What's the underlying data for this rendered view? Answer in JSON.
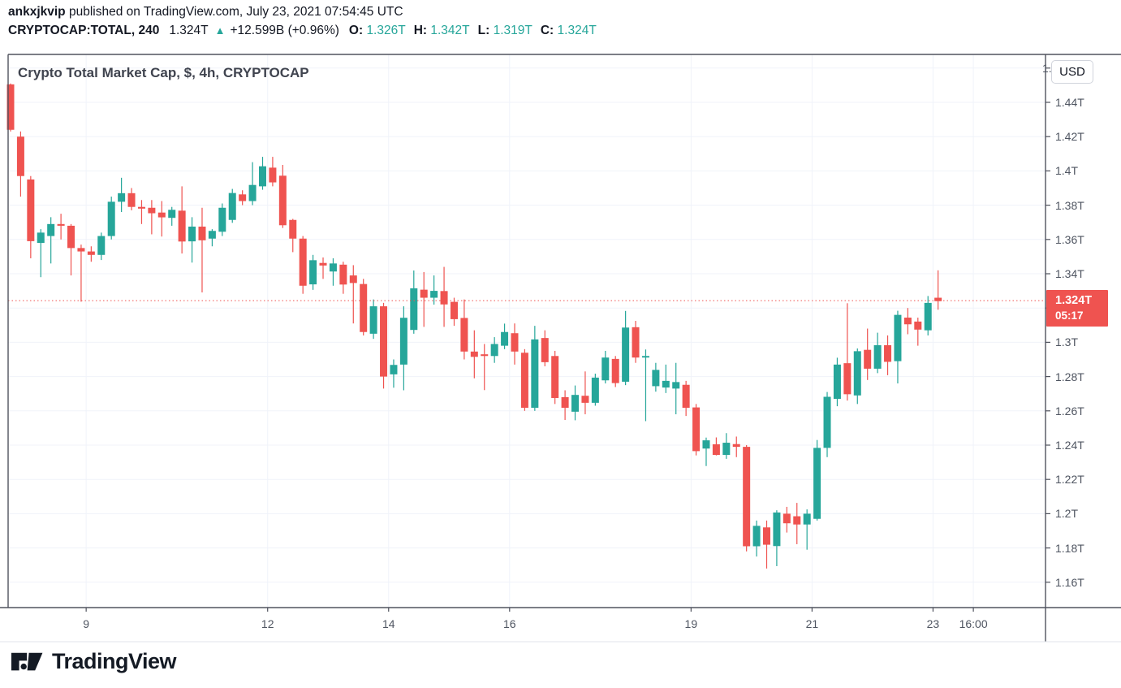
{
  "header": {
    "published": {
      "user": "ankxjkvip",
      "rest": " published on TradingView.com, July 23, 2021 07:54:45 UTC"
    },
    "quote": {
      "symbol": "CRYPTOCAP:TOTAL, 240",
      "last": "1.324T",
      "direction": "▲",
      "change": "+12.599B (+0.96%)",
      "ohlc": [
        {
          "label": "O:",
          "value": "1.326T"
        },
        {
          "label": "H:",
          "value": "1.342T"
        },
        {
          "label": "L:",
          "value": "1.319T"
        },
        {
          "label": "C:",
          "value": "1.324T"
        }
      ]
    }
  },
  "chart": {
    "title": "Crypto Total Market Cap, $, 4h, CRYPTOCAP",
    "currency_button": "USD",
    "price_flag": {
      "price": "1.324T",
      "countdown": "05:17"
    }
  },
  "colors": {
    "up": "#26a69a",
    "down": "#ef5350",
    "grid": "#f0f3fa",
    "pane_border": "#50535e",
    "axis_text": "#4f5561",
    "price_line": "#ef5350",
    "flag_bg": "#ef5350",
    "teal_text": "#26a69a",
    "dark_text": "#131722"
  },
  "footer": {
    "brand": "TradingView"
  },
  "chart_data": {
    "type": "candlestick",
    "title": "Crypto Total Market Cap, $, 4h, CRYPTOCAP",
    "symbol": "CRYPTOCAP:TOTAL",
    "interval": "240 (4h)",
    "currency": "USD",
    "unit": "trillions of USD",
    "last_price": 1.324,
    "price_line": 1.3243,
    "open": 1.326,
    "high": 1.342,
    "low": 1.319,
    "close": 1.324,
    "change_abs": "+12.599B",
    "change_pct": "+0.96%",
    "y_axis": {
      "min": 1.147,
      "max": 1.468,
      "grid_step": 0.02
    },
    "y_ticks": [
      {
        "label": "1.46T",
        "value": 1.46
      },
      {
        "label": "1.44T",
        "value": 1.44
      },
      {
        "label": "1.42T",
        "value": 1.42
      },
      {
        "label": "1.4T",
        "value": 1.4
      },
      {
        "label": "1.38T",
        "value": 1.38
      },
      {
        "label": "1.36T",
        "value": 1.36
      },
      {
        "label": "1.34T",
        "value": 1.34
      },
      {
        "label": "1.32T",
        "value": 1.32
      },
      {
        "label": "1.3T",
        "value": 1.3
      },
      {
        "label": "1.28T",
        "value": 1.28
      },
      {
        "label": "1.26T",
        "value": 1.26
      },
      {
        "label": "1.24T",
        "value": 1.24
      },
      {
        "label": "1.22T",
        "value": 1.22
      },
      {
        "label": "1.2T",
        "value": 1.2
      },
      {
        "label": "1.18T",
        "value": 1.18
      },
      {
        "label": "1.16T",
        "value": 1.16
      }
    ],
    "x_ticks": [
      {
        "label": "9",
        "boundary_after_index": 7
      },
      {
        "label": "12",
        "boundary_after_index": 25
      },
      {
        "label": "14",
        "boundary_after_index": 37
      },
      {
        "label": "16",
        "boundary_after_index": 49
      },
      {
        "label": "19",
        "boundary_after_index": 67
      },
      {
        "label": "21",
        "boundary_after_index": 79
      },
      {
        "label": "23",
        "boundary_after_index": 91
      },
      {
        "label": "16:00",
        "boundary_after_index": 95
      }
    ],
    "candles": [
      [
        1.4505,
        1.451,
        1.423,
        1.424
      ],
      [
        1.42,
        1.423,
        1.385,
        1.397
      ],
      [
        1.395,
        1.397,
        1.349,
        1.359
      ],
      [
        1.358,
        1.366,
        1.338,
        1.364
      ],
      [
        1.362,
        1.373,
        1.346,
        1.369
      ],
      [
        1.369,
        1.375,
        1.36,
        1.368
      ],
      [
        1.368,
        1.369,
        1.339,
        1.355
      ],
      [
        1.355,
        1.357,
        1.3237,
        1.353
      ],
      [
        1.353,
        1.356,
        1.347,
        1.351
      ],
      [
        1.351,
        1.364,
        1.348,
        1.362
      ],
      [
        1.362,
        1.385,
        1.36,
        1.382
      ],
      [
        1.382,
        1.396,
        1.376,
        1.387
      ],
      [
        1.387,
        1.39,
        1.377,
        1.379
      ],
      [
        1.379,
        1.383,
        1.369,
        1.378
      ],
      [
        1.3785,
        1.383,
        1.363,
        1.3753
      ],
      [
        1.3757,
        1.3824,
        1.3617,
        1.3729
      ],
      [
        1.3726,
        1.379,
        1.368,
        1.3773
      ],
      [
        1.3768,
        1.391,
        1.3518,
        1.3588
      ],
      [
        1.3589,
        1.373,
        1.3465,
        1.3675
      ],
      [
        1.3675,
        1.3785,
        1.3291,
        1.3595
      ],
      [
        1.3605,
        1.366,
        1.356,
        1.365
      ],
      [
        1.3645,
        1.381,
        1.362,
        1.3785
      ],
      [
        1.3714,
        1.3895,
        1.3697,
        1.3871
      ],
      [
        1.3863,
        1.3887,
        1.38,
        1.3824
      ],
      [
        1.3824,
        1.4051,
        1.38,
        1.3918
      ],
      [
        1.391,
        1.4082,
        1.389,
        1.4027
      ],
      [
        1.4019,
        1.4082,
        1.391,
        1.3933
      ],
      [
        1.3972,
        1.4035,
        1.3667,
        1.3683
      ],
      [
        1.3714,
        1.372,
        1.3526,
        1.3605
      ],
      [
        1.3605,
        1.362,
        1.3283,
        1.333
      ],
      [
        1.3338,
        1.351,
        1.3306,
        1.3479
      ],
      [
        1.3463,
        1.3495,
        1.337,
        1.3448
      ],
      [
        1.3413,
        1.349,
        1.333,
        1.346
      ],
      [
        1.3453,
        1.347,
        1.3283,
        1.3337
      ],
      [
        1.339,
        1.345,
        1.311,
        1.3346
      ],
      [
        1.334,
        1.337,
        1.304,
        1.306
      ],
      [
        1.305,
        1.325,
        1.302,
        1.321
      ],
      [
        1.321,
        1.323,
        1.273,
        1.28
      ],
      [
        1.2813,
        1.29,
        1.2735,
        1.2868
      ],
      [
        1.287,
        1.321,
        1.272,
        1.3143
      ],
      [
        1.3072,
        1.3419,
        1.305,
        1.3315
      ],
      [
        1.3307,
        1.341,
        1.309,
        1.326
      ],
      [
        1.326,
        1.339,
        1.322,
        1.33
      ],
      [
        1.3299,
        1.344,
        1.309,
        1.3221
      ],
      [
        1.3236,
        1.326,
        1.3096,
        1.3135
      ],
      [
        1.3142,
        1.325,
        1.29,
        1.2946
      ],
      [
        1.2946,
        1.307,
        1.279,
        1.2915
      ],
      [
        1.293,
        1.299,
        1.2721,
        1.292
      ],
      [
        1.292,
        1.303,
        1.288,
        1.299
      ],
      [
        1.298,
        1.3109,
        1.296,
        1.306
      ],
      [
        1.3053,
        1.311,
        1.287,
        1.2946
      ],
      [
        1.2939,
        1.296,
        1.26,
        1.2618
      ],
      [
        1.2618,
        1.3096,
        1.26,
        1.3017
      ],
      [
        1.3025,
        1.307,
        1.286,
        1.2884
      ],
      [
        1.292,
        1.295,
        1.264,
        1.2675
      ],
      [
        1.268,
        1.272,
        1.2547,
        1.2618
      ],
      [
        1.2595,
        1.2748,
        1.2545,
        1.2693
      ],
      [
        1.2688,
        1.283,
        1.258,
        1.2647
      ],
      [
        1.2647,
        1.2817,
        1.263,
        1.2794
      ],
      [
        1.2778,
        1.295,
        1.276,
        1.2911
      ],
      [
        1.2903,
        1.292,
        1.2739,
        1.2762
      ],
      [
        1.277,
        1.3183,
        1.275,
        1.3086
      ],
      [
        1.3088,
        1.3125,
        1.288,
        1.2911
      ],
      [
        1.2911,
        1.2958,
        1.254,
        1.292
      ],
      [
        1.2744,
        1.288,
        1.2712,
        1.2839
      ],
      [
        1.2736,
        1.287,
        1.2704,
        1.2775
      ],
      [
        1.273,
        1.288,
        1.258,
        1.2768
      ],
      [
        1.2752,
        1.2775,
        1.257,
        1.2618
      ],
      [
        1.262,
        1.264,
        1.234,
        1.2365
      ],
      [
        1.238,
        1.2444,
        1.2278,
        1.2428
      ],
      [
        1.2405,
        1.2445,
        1.234,
        1.2343
      ],
      [
        1.2343,
        1.247,
        1.232,
        1.2414
      ],
      [
        1.2406,
        1.245,
        1.233,
        1.239
      ],
      [
        1.239,
        1.24,
        1.178,
        1.181
      ],
      [
        1.181,
        1.196,
        1.175,
        1.1929
      ],
      [
        1.192,
        1.196,
        1.168,
        1.1819
      ],
      [
        1.1811,
        1.202,
        1.1694,
        1.2007
      ],
      [
        1.2,
        1.204,
        1.189,
        1.1944
      ],
      [
        1.1985,
        1.2063,
        1.1822,
        1.1937
      ],
      [
        1.1937,
        1.2025,
        1.179,
        1.2
      ],
      [
        1.197,
        1.243,
        1.196,
        1.2384
      ],
      [
        1.2384,
        1.271,
        1.233,
        1.2682
      ],
      [
        1.267,
        1.291,
        1.2627,
        1.287
      ],
      [
        1.2878,
        1.3228,
        1.266,
        1.2697
      ],
      [
        1.269,
        1.2964,
        1.264,
        1.2948
      ],
      [
        1.2956,
        1.308,
        1.278,
        1.2846
      ],
      [
        1.2846,
        1.3056,
        1.282,
        1.2983
      ],
      [
        1.2983,
        1.304,
        1.2808,
        1.2886
      ],
      [
        1.289,
        1.3184,
        1.276,
        1.316
      ],
      [
        1.3144,
        1.32,
        1.3047,
        1.3105
      ],
      [
        1.3121,
        1.3144,
        1.298,
        1.3074
      ],
      [
        1.307,
        1.327,
        1.304,
        1.323
      ],
      [
        1.326,
        1.342,
        1.319,
        1.324
      ]
    ]
  }
}
